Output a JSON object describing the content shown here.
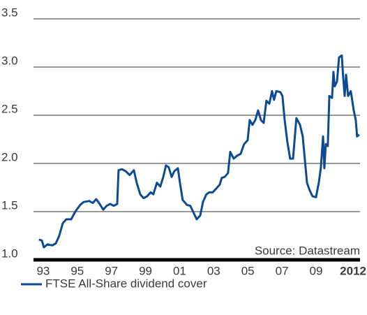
{
  "chart_data": {
    "type": "line",
    "annotation": "Source: Datastream",
    "x": [
      1992.75,
      1992.92,
      1993.04,
      1993.25,
      1993.53,
      1993.74,
      1993.94,
      1994.15,
      1994.35,
      1994.64,
      1994.88,
      1995.17,
      1995.37,
      1995.7,
      1995.91,
      1996.11,
      1996.31,
      1996.52,
      1996.72,
      1996.93,
      1997.13,
      1997.34,
      1997.42,
      1997.62,
      1997.83,
      1998.07,
      1998.32,
      1998.48,
      1998.69,
      1998.89,
      1999.1,
      1999.3,
      1999.46,
      1999.67,
      1999.87,
      2000.04,
      2000.2,
      2000.36,
      2000.53,
      2000.69,
      2000.9,
      2001.02,
      2001.18,
      2001.43,
      2001.63,
      2001.84,
      2002.0,
      2002.21,
      2002.37,
      2002.57,
      2002.74,
      2002.94,
      2003.15,
      2003.35,
      2003.47,
      2003.64,
      2003.84,
      2003.97,
      2004.17,
      2004.37,
      2004.58,
      2004.78,
      2004.99,
      2005.11,
      2005.27,
      2005.44,
      2005.6,
      2005.77,
      2005.93,
      2006.09,
      2006.26,
      2006.42,
      2006.54,
      2006.67,
      2006.91,
      2007.03,
      2007.16,
      2007.32,
      2007.48,
      2007.65,
      2007.85,
      2008.06,
      2008.22,
      2008.34,
      2008.47,
      2008.63,
      2008.79,
      2009.0,
      2009.16,
      2009.28,
      2009.41,
      2009.49,
      2009.57,
      2009.69,
      2009.78,
      2009.94,
      2010.02,
      2010.1,
      2010.23,
      2010.35,
      2010.51,
      2010.59,
      2010.68,
      2010.76,
      2010.88,
      2011.04,
      2011.21,
      2011.33,
      2011.41,
      2011.53
    ],
    "series": [
      {
        "name": "FTSE All-Share dividend cover",
        "color": "#0d4a94",
        "values": [
          1.21,
          1.2,
          1.13,
          1.16,
          1.15,
          1.17,
          1.25,
          1.38,
          1.42,
          1.42,
          1.5,
          1.57,
          1.6,
          1.61,
          1.59,
          1.63,
          1.58,
          1.52,
          1.56,
          1.58,
          1.56,
          1.58,
          1.93,
          1.94,
          1.92,
          1.88,
          1.93,
          1.8,
          1.68,
          1.64,
          1.66,
          1.7,
          1.68,
          1.8,
          1.76,
          1.86,
          1.98,
          1.96,
          1.86,
          1.92,
          1.95,
          1.8,
          1.62,
          1.57,
          1.56,
          1.48,
          1.42,
          1.46,
          1.6,
          1.68,
          1.7,
          1.7,
          1.74,
          1.78,
          1.85,
          1.86,
          1.9,
          2.12,
          2.05,
          2.08,
          2.1,
          2.2,
          2.24,
          2.45,
          2.4,
          2.45,
          2.55,
          2.45,
          2.42,
          2.65,
          2.62,
          2.75,
          2.66,
          2.75,
          2.74,
          2.7,
          2.45,
          2.22,
          2.05,
          2.05,
          2.47,
          2.4,
          2.28,
          2.05,
          1.8,
          1.72,
          1.66,
          1.65,
          1.8,
          1.95,
          2.28,
          1.95,
          2.2,
          2.18,
          2.7,
          2.68,
          2.95,
          2.8,
          2.85,
          3.1,
          3.12,
          2.9,
          2.7,
          2.92,
          2.7,
          2.75,
          2.55,
          2.45,
          2.28,
          2.3
        ]
      }
    ],
    "xlim": [
      1992.43,
      2011.58
    ],
    "xticks": [
      {
        "value": 1993,
        "label": "93"
      },
      {
        "value": 1995,
        "label": "95"
      },
      {
        "value": 1997,
        "label": "97"
      },
      {
        "value": 1999,
        "label": "99"
      },
      {
        "value": 2001,
        "label": "01"
      },
      {
        "value": 2003,
        "label": "03"
      },
      {
        "value": 2005,
        "label": "05"
      },
      {
        "value": 2007,
        "label": "07"
      },
      {
        "value": 2009,
        "label": "09"
      },
      2012
    ],
    "ylim": [
      1.0,
      3.5
    ],
    "yticks": [
      {
        "value": 1,
        "label": "1.0"
      },
      1.5,
      {
        "value": 2,
        "label": "2.0"
      },
      2.5,
      {
        "value": 3,
        "label": "3.0"
      },
      3.5
    ],
    "grid": true
  }
}
